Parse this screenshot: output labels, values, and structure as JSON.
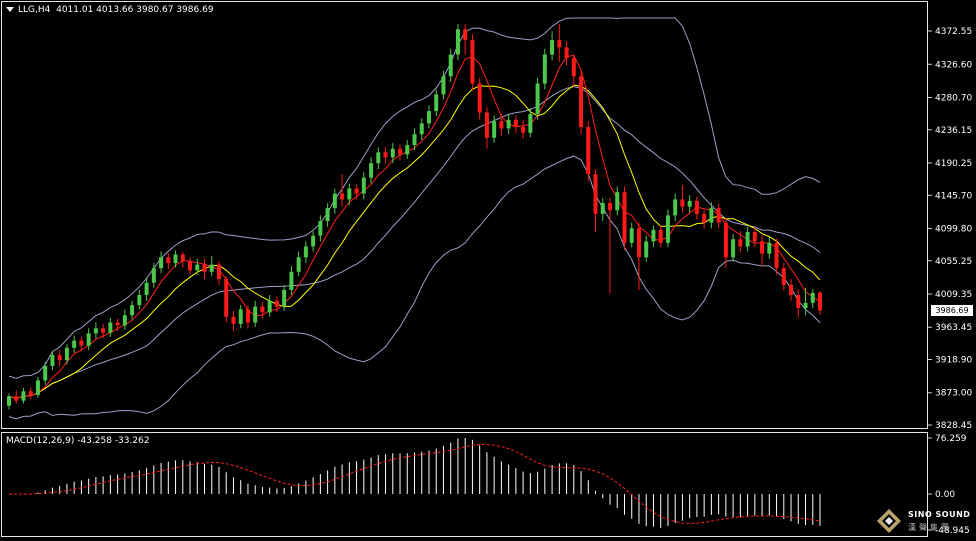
{
  "header": {
    "symbol": "LLG,H4",
    "ohlc": "4011.01 4013.66 3980.67 3986.69"
  },
  "macd_header": "MACD(12,26,9) -43.258 -33.262",
  "current_price": "3986.69",
  "logo": {
    "name": "SINO SOUND",
    "cn": "漢聲集團"
  },
  "colors": {
    "background": "#000000",
    "bull": "#4cc94c",
    "bear": "#ff1a1a",
    "ma_fast": "#ff2020",
    "ma_slow": "#ffff00",
    "bands": "#9aa0c8",
    "macd_hist": "#ffffff",
    "macd_signal": "#ff2020"
  },
  "chart_data": [
    {
      "type": "candlestick",
      "title": "LLG,H4",
      "y_ticks": [
        "4372.55",
        "4326.60",
        "4280.70",
        "4236.15",
        "4190.25",
        "4145.70",
        "4099.80",
        "4055.25",
        "4009.35",
        "3963.45",
        "3918.90",
        "3873.00",
        "3828.45"
      ],
      "ylim": [
        3828.45,
        4395
      ],
      "grid": false,
      "candles": [
        [
          3855,
          3868,
          3850,
          3872
        ],
        [
          3868,
          3862,
          3858,
          3876
        ],
        [
          3862,
          3875,
          3858,
          3880
        ],
        [
          3875,
          3870,
          3864,
          3880
        ],
        [
          3870,
          3890,
          3866,
          3895
        ],
        [
          3890,
          3910,
          3884,
          3916
        ],
        [
          3910,
          3925,
          3904,
          3930
        ],
        [
          3925,
          3918,
          3910,
          3932
        ],
        [
          3918,
          3935,
          3912,
          3940
        ],
        [
          3935,
          3945,
          3928,
          3952
        ],
        [
          3945,
          3938,
          3930,
          3950
        ],
        [
          3938,
          3955,
          3932,
          3962
        ],
        [
          3955,
          3962,
          3948,
          3970
        ],
        [
          3962,
          3956,
          3948,
          3968
        ],
        [
          3956,
          3970,
          3950,
          3976
        ],
        [
          3970,
          3966,
          3958,
          3975
        ],
        [
          3966,
          3980,
          3960,
          3988
        ],
        [
          3980,
          3994,
          3974,
          4000
        ],
        [
          3994,
          4008,
          3988,
          4015
        ],
        [
          4008,
          4025,
          4000,
          4032
        ],
        [
          4025,
          4045,
          4018,
          4052
        ],
        [
          4045,
          4060,
          4038,
          4068
        ],
        [
          4060,
          4052,
          4044,
          4066
        ],
        [
          4052,
          4064,
          4046,
          4070
        ],
        [
          4064,
          4055,
          4046,
          4068
        ],
        [
          4055,
          4042,
          4036,
          4060
        ],
        [
          4042,
          4050,
          4036,
          4058
        ],
        [
          4050,
          4040,
          4030,
          4058
        ],
        [
          4040,
          4050,
          4034,
          4062
        ],
        [
          4050,
          4030,
          4022,
          4054
        ],
        [
          4030,
          3978,
          3970,
          4034
        ],
        [
          3978,
          3968,
          3958,
          3986
        ],
        [
          3968,
          3988,
          3962,
          3994
        ],
        [
          3988,
          3970,
          3962,
          3994
        ],
        [
          3970,
          3992,
          3964,
          4000
        ],
        [
          3992,
          3984,
          3976,
          3998
        ],
        [
          3984,
          4000,
          3978,
          4008
        ],
        [
          4000,
          3992,
          3984,
          4006
        ],
        [
          3992,
          4015,
          3986,
          4022
        ],
        [
          4015,
          4040,
          4008,
          4048
        ],
        [
          4040,
          4060,
          4034,
          4068
        ],
        [
          4060,
          4075,
          4052,
          4082
        ],
        [
          4075,
          4090,
          4068,
          4096
        ],
        [
          4090,
          4110,
          4082,
          4118
        ],
        [
          4110,
          4128,
          4102,
          4135
        ],
        [
          4128,
          4148,
          4120,
          4155
        ],
        [
          4148,
          4140,
          4130,
          4175
        ],
        [
          4140,
          4155,
          4132,
          4162
        ],
        [
          4155,
          4148,
          4140,
          4160
        ],
        [
          4148,
          4170,
          4140,
          4178
        ],
        [
          4170,
          4190,
          4162,
          4198
        ],
        [
          4190,
          4205,
          4182,
          4212
        ],
        [
          4205,
          4198,
          4190,
          4212
        ],
        [
          4198,
          4210,
          4190,
          4218
        ],
        [
          4210,
          4202,
          4194,
          4216
        ],
        [
          4202,
          4215,
          4196,
          4222
        ],
        [
          4215,
          4230,
          4208,
          4238
        ],
        [
          4230,
          4245,
          4222,
          4252
        ],
        [
          4245,
          4262,
          4238,
          4270
        ],
        [
          4262,
          4285,
          4255,
          4292
        ],
        [
          4285,
          4310,
          4278,
          4318
        ],
        [
          4310,
          4340,
          4302,
          4348
        ],
        [
          4340,
          4375,
          4332,
          4382
        ],
        [
          4375,
          4360,
          4340,
          4382
        ],
        [
          4360,
          4300,
          4290,
          4368
        ],
        [
          4300,
          4260,
          4250,
          4308
        ],
        [
          4260,
          4225,
          4210,
          4268
        ],
        [
          4225,
          4248,
          4218,
          4256
        ],
        [
          4248,
          4238,
          4228,
          4258
        ],
        [
          4238,
          4250,
          4230,
          4258
        ],
        [
          4250,
          4240,
          4232,
          4256
        ],
        [
          4240,
          4232,
          4224,
          4250
        ],
        [
          4232,
          4258,
          4226,
          4266
        ],
        [
          4258,
          4300,
          4250,
          4308
        ],
        [
          4300,
          4340,
          4292,
          4348
        ],
        [
          4340,
          4360,
          4332,
          4372
        ],
        [
          4360,
          4350,
          4330,
          4382
        ],
        [
          4350,
          4335,
          4325,
          4358
        ],
        [
          4335,
          4310,
          4295,
          4340
        ],
        [
          4310,
          4240,
          4230,
          4318
        ],
        [
          4240,
          4175,
          4165,
          4248
        ],
        [
          4175,
          4120,
          4095,
          4182
        ],
        [
          4120,
          4135,
          4110,
          4142
        ],
        [
          4135,
          4125,
          4010,
          4142
        ],
        [
          4125,
          4150,
          4118,
          4158
        ],
        [
          4150,
          4080,
          4070,
          4158
        ],
        [
          4080,
          4100,
          4074,
          4108
        ],
        [
          4100,
          4060,
          4015,
          4108
        ],
        [
          4060,
          4082,
          4054,
          4090
        ],
        [
          4082,
          4098,
          4074,
          4104
        ],
        [
          4098,
          4080,
          4074,
          4104
        ],
        [
          4080,
          4118,
          4074,
          4126
        ],
        [
          4118,
          4140,
          4110,
          4148
        ],
        [
          4140,
          4130,
          4122,
          4160
        ],
        [
          4130,
          4138,
          4122,
          4146
        ],
        [
          4138,
          4120,
          4112,
          4144
        ],
        [
          4120,
          4108,
          4100,
          4126
        ],
        [
          4108,
          4128,
          4100,
          4136
        ],
        [
          4128,
          4108,
          4100,
          4134
        ],
        [
          4108,
          4060,
          4045,
          4114
        ],
        [
          4060,
          4085,
          4054,
          4092
        ],
        [
          4085,
          4075,
          4067,
          4096
        ],
        [
          4075,
          4095,
          4068,
          4102
        ],
        [
          4095,
          4082,
          4074,
          4102
        ],
        [
          4082,
          4065,
          4048,
          4090
        ],
        [
          4065,
          4080,
          4058,
          4088
        ],
        [
          4080,
          4045,
          4036,
          4086
        ],
        [
          4045,
          4022,
          4014,
          4052
        ],
        [
          4022,
          4008,
          4000,
          4030
        ],
        [
          4008,
          3990,
          3978,
          4016
        ],
        [
          3990,
          3997,
          3980,
          4018
        ],
        [
          3997,
          4011,
          3990,
          4016
        ],
        [
          4011,
          3986.69,
          3980.67,
          4013.66
        ]
      ]
    },
    {
      "type": "histogram",
      "title": "MACD(12,26,9)",
      "y_ticks": [
        "76.259",
        "0.00",
        "-48.945"
      ],
      "ylim": [
        -48.945,
        76.259
      ],
      "macd_value": -43.258,
      "signal_value": -33.262
    }
  ]
}
